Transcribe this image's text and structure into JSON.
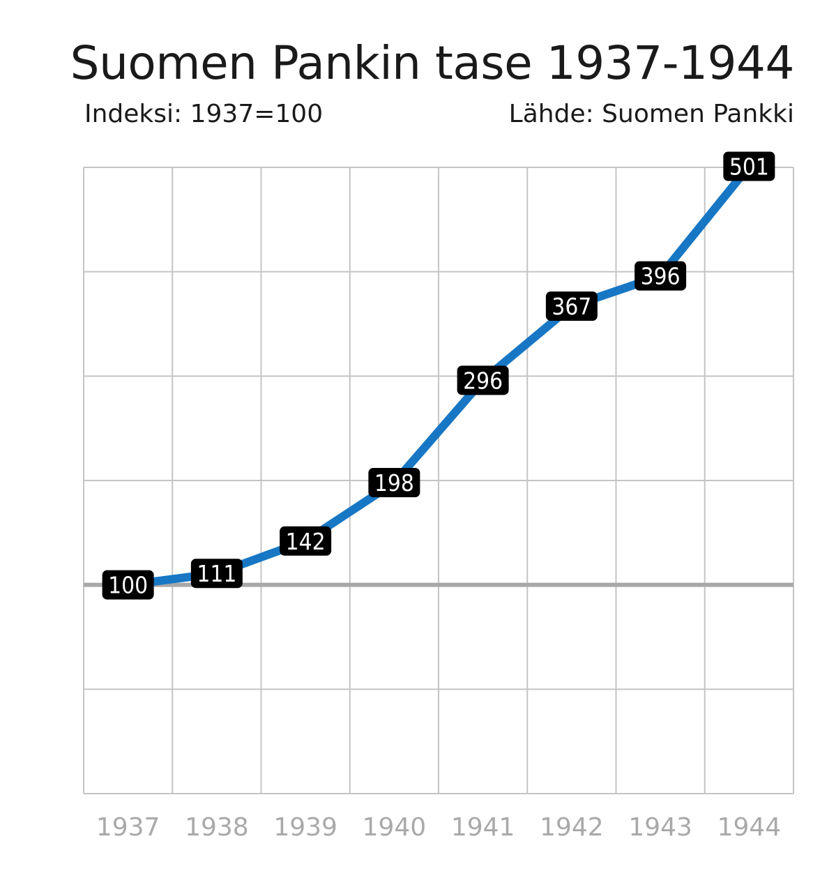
{
  "chart_data": {
    "type": "line",
    "title": "Suomen Pankin tase 1937-1944",
    "subtitle": "Indeksi: 1937=100",
    "source": "Lähde: Suomen Pankki",
    "categories": [
      "1937",
      "1938",
      "1939",
      "1940",
      "1941",
      "1942",
      "1943",
      "1944"
    ],
    "series": [
      {
        "values": [
          100,
          111,
          142,
          198,
          296,
          367,
          396,
          501
        ],
        "color": "#1777c4"
      }
    ],
    "data_labels": [
      "100",
      "111",
      "142",
      "198",
      "296",
      "367",
      "396",
      "501"
    ],
    "ylim": [
      -100,
      500
    ],
    "y_gridlines": [
      -100,
      0,
      100,
      200,
      300,
      400,
      500
    ],
    "reference_line": 100,
    "grid": true,
    "colors": {
      "line": "#1777c4",
      "label_background": "#000000",
      "label_text": "#ffffff",
      "grid": "#c4c4c4",
      "reference_line": "#a8a8a8",
      "tick_text": "#a9a9a9",
      "title_text": "#1a1a1a"
    }
  }
}
